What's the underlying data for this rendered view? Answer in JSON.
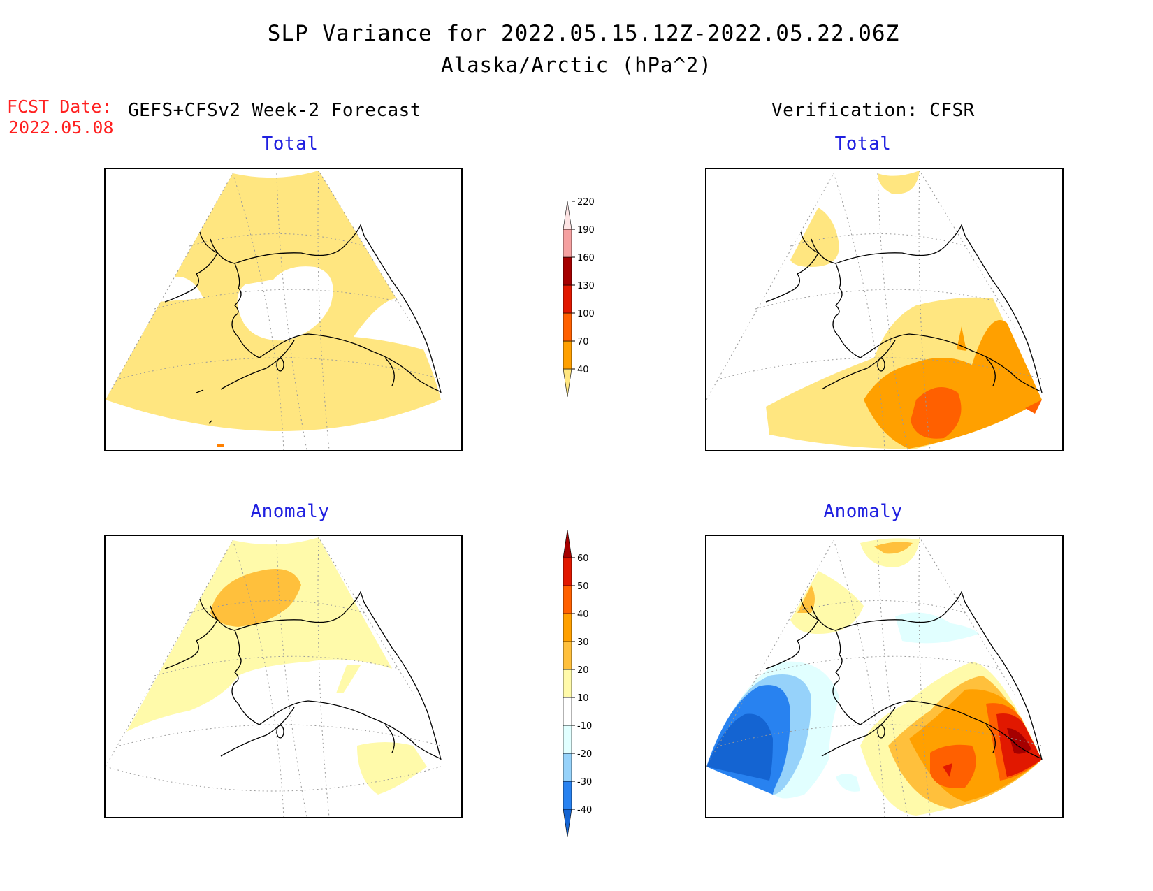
{
  "header": {
    "title_line1": "SLP Variance for 2022.05.15.12Z-2022.05.22.06Z",
    "title_line2": "Alaska/Arctic (hPa^2)"
  },
  "forecast_date": {
    "label": "FCST Date:",
    "value": "2022.05.08"
  },
  "columns": {
    "left_heading": "GEFS+CFSv2 Week-2 Forecast",
    "right_heading": "Verification: CFSR"
  },
  "panels": {
    "fcst_total_title": "Total",
    "ver_total_title": "Total",
    "fcst_anom_title": "Anomaly",
    "ver_anom_title": "Anomaly"
  },
  "colorbar_total": {
    "levels": [
      "40",
      "70",
      "100",
      "130",
      "160",
      "190",
      "220"
    ],
    "colors": [
      "#ffe680",
      "#ffa000",
      "#ff6000",
      "#e11800",
      "#a50000",
      "#f5a0a0",
      "#fde4e4"
    ]
  },
  "colorbar_anomaly": {
    "levels": [
      "-40",
      "-30",
      "-20",
      "-10",
      "10",
      "20",
      "30",
      "40",
      "50",
      "60"
    ],
    "colors": [
      "#1464d2",
      "#2882f0",
      "#96d2fa",
      "#e1ffff",
      "#ffffff",
      "#fffaaa",
      "#ffc03c",
      "#ffa000",
      "#ff6000",
      "#e11800",
      "#a50000"
    ]
  },
  "palette": {
    "yellow": "#ffe680",
    "light_yellow": "#fffaaa",
    "orange_light": "#ffc03c",
    "orange": "#ffa000",
    "orange_dark": "#ff6000",
    "red": "#e11800",
    "dark_red": "#a50000",
    "blue_dark": "#1464d2",
    "blue": "#2882f0",
    "blue_light": "#96d2fa",
    "cyan_pale": "#e1ffff"
  }
}
